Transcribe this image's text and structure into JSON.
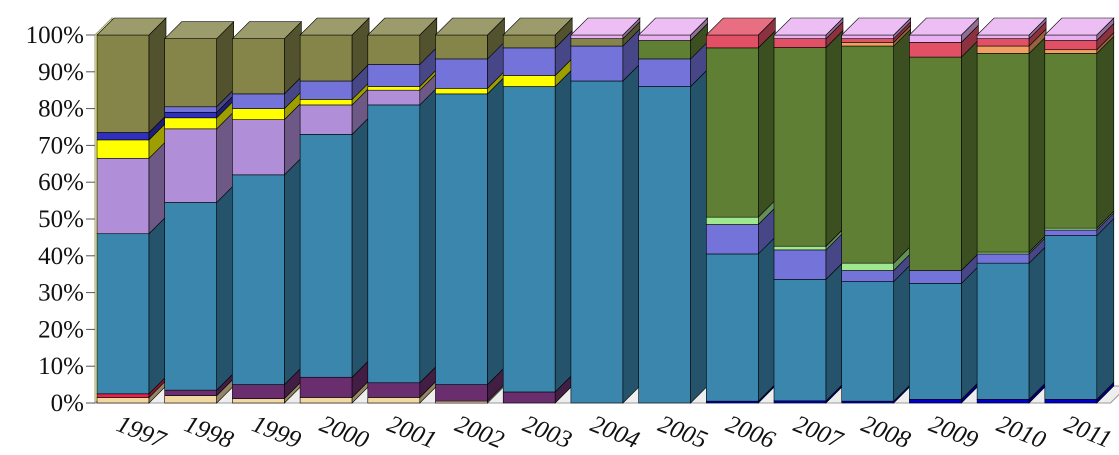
{
  "chart_data": {
    "type": "bar",
    "stacked": true,
    "percent": true,
    "three_d": true,
    "title": "",
    "xlabel": "",
    "ylabel": "",
    "ylim": [
      0,
      100
    ],
    "yticks": [
      "0%",
      "10%",
      "20%",
      "30%",
      "40%",
      "50%",
      "60%",
      "70%",
      "80%",
      "90%",
      "100%"
    ],
    "legend": "none",
    "categories": [
      "1997",
      "1998",
      "1999",
      "2000",
      "2001",
      "2002",
      "2003",
      "2004",
      "2005",
      "2006",
      "2007",
      "2008",
      "2009",
      "2010",
      "2011"
    ],
    "series": [
      {
        "color": "#0000cc",
        "values": [
          0,
          0,
          0,
          0,
          0,
          0,
          0,
          0,
          0,
          0.5,
          0.6,
          0.5,
          1,
          1,
          1
        ]
      },
      {
        "color": "#f0d8a0",
        "values": [
          1.5,
          2,
          1.2,
          1.5,
          1.5,
          0.5,
          0,
          0,
          0,
          0,
          0,
          0,
          0,
          0,
          0
        ]
      },
      {
        "color": "#e8204a",
        "values": [
          1,
          0,
          0,
          0,
          0,
          0,
          0,
          0,
          0,
          0,
          0,
          0,
          0,
          0,
          0
        ]
      },
      {
        "color": "#6a2e6e",
        "values": [
          0,
          1.5,
          3.8,
          5.5,
          4,
          4.5,
          3,
          0,
          0,
          0,
          0,
          0,
          0,
          0,
          0
        ]
      },
      {
        "color": "#3a86ad",
        "values": [
          43.5,
          51,
          57,
          66,
          75.5,
          79,
          83,
          87.5,
          86,
          40,
          33,
          32.5,
          31.5,
          37,
          44.5
        ]
      },
      {
        "color": "#7373d9",
        "values": [
          0,
          0,
          0,
          0,
          0,
          0,
          0,
          9.5,
          7.5,
          8,
          8,
          3,
          3.5,
          2.5,
          1.5
        ]
      },
      {
        "color": "#a0e890",
        "values": [
          0,
          0,
          0,
          0,
          0,
          0,
          0,
          0,
          0,
          2,
          1,
          2,
          0,
          0.5,
          0.5
        ]
      },
      {
        "color": "#5f7f35",
        "values": [
          0,
          0,
          0,
          0,
          0,
          0,
          0,
          0,
          5,
          46,
          54,
          59,
          58,
          54,
          47.5
        ]
      },
      {
        "color": "#b08ed8",
        "values": [
          20.5,
          20,
          15,
          8,
          4,
          0,
          0,
          0,
          0,
          0,
          0,
          0,
          0,
          0,
          0
        ]
      },
      {
        "color": "#ffff00",
        "values": [
          5,
          3,
          3,
          1.5,
          1,
          1.5,
          3,
          0,
          0,
          0,
          0,
          0,
          0,
          0,
          0
        ]
      },
      {
        "color": "#3030c0",
        "values": [
          2,
          1.5,
          0,
          0,
          0,
          0,
          0,
          0,
          0,
          0,
          0,
          0,
          0,
          0,
          0
        ]
      },
      {
        "color": "#7373d9",
        "values": [
          0,
          1.5,
          4,
          5,
          6,
          8,
          7.5,
          0,
          0,
          0,
          0,
          0,
          0,
          0,
          0
        ]
      },
      {
        "color": "#85854a",
        "values": [
          26.5,
          18.5,
          15,
          12.5,
          8,
          6.5,
          3.5,
          2,
          0,
          0,
          0,
          0,
          0,
          0,
          0
        ]
      },
      {
        "color": "#f0a060",
        "values": [
          0,
          0,
          0,
          0,
          0,
          0,
          0,
          0,
          0,
          0,
          0,
          1,
          0,
          2,
          1
        ]
      },
      {
        "color": "#e25065",
        "values": [
          0,
          0,
          0,
          0,
          0,
          0,
          0,
          0,
          0,
          3.5,
          2.4,
          1,
          4,
          2,
          2.5
        ]
      },
      {
        "color": "#e8b0f0",
        "values": [
          0,
          0,
          0,
          0,
          0,
          0,
          0,
          1,
          1.5,
          0,
          1,
          1,
          2,
          1,
          1.5
        ]
      }
    ]
  }
}
